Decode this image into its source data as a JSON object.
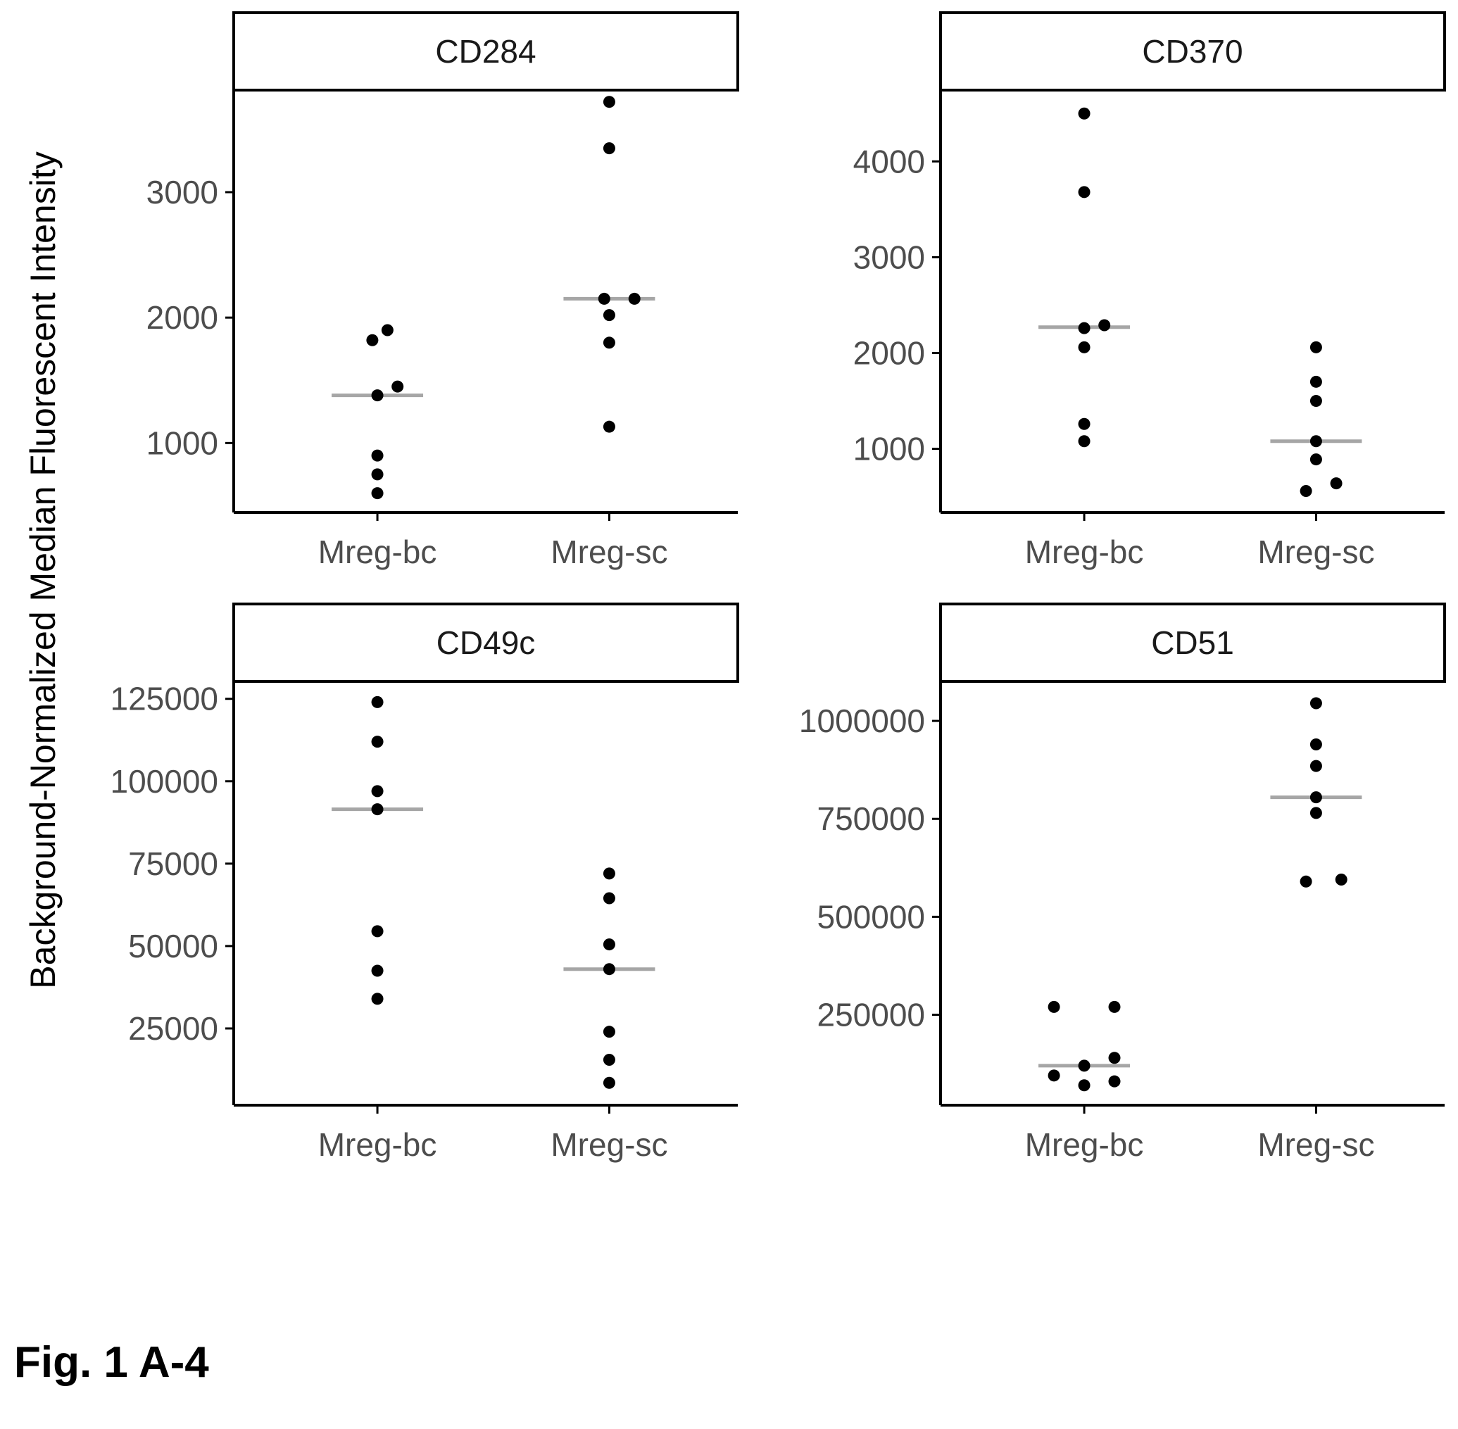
{
  "figure_caption": "Fig. 1 A-4",
  "ylabel": "Background-Normalized Median Fluorescent Intensity",
  "colors": {
    "point": "#000000",
    "median": "#a6a6a6",
    "axis": "#000000"
  },
  "chart_data": [
    {
      "type": "scatter",
      "panel": "CD284",
      "categories": [
        "Mreg-bc",
        "Mreg-sc"
      ],
      "ylim": [
        480,
        3780
      ],
      "yticks": [
        1000,
        2000,
        3000
      ],
      "ytick_labels": [
        "1000",
        "2000",
        "3000"
      ],
      "series": [
        {
          "category": "Mreg-bc",
          "values": [
            600,
            750,
            900,
            1380,
            1450,
            1820,
            1900
          ],
          "jitter": [
            0,
            0,
            0,
            0,
            0.04,
            -0.01,
            0.02
          ],
          "median": 1380
        },
        {
          "category": "Mreg-sc",
          "values": [
            1130,
            1800,
            2020,
            2150,
            2150,
            3350,
            3720
          ],
          "jitter": [
            0,
            0,
            0,
            -0.01,
            0.05,
            0,
            0
          ],
          "median": 2150
        }
      ],
      "grid": false
    },
    {
      "type": "scatter",
      "panel": "CD370",
      "categories": [
        "Mreg-bc",
        "Mreg-sc"
      ],
      "ylim": [
        380,
        4700
      ],
      "yticks": [
        1000,
        2000,
        3000,
        4000
      ],
      "ytick_labels": [
        "1000",
        "2000",
        "3000",
        "4000"
      ],
      "series": [
        {
          "category": "Mreg-bc",
          "values": [
            1080,
            1260,
            2060,
            2260,
            2290,
            3680,
            4500
          ],
          "jitter": [
            0,
            0,
            0,
            0,
            0.04,
            0,
            0
          ],
          "median": 2270
        },
        {
          "category": "Mreg-sc",
          "values": [
            560,
            640,
            890,
            1080,
            1500,
            1700,
            2060
          ],
          "jitter": [
            -0.02,
            0.04,
            0,
            0,
            0,
            0,
            0
          ],
          "median": 1080
        }
      ],
      "grid": false
    },
    {
      "type": "scatter",
      "panel": "CD49c",
      "categories": [
        "Mreg-bc",
        "Mreg-sc"
      ],
      "ylim": [
        3000,
        129000
      ],
      "yticks": [
        25000,
        50000,
        75000,
        100000,
        125000
      ],
      "ytick_labels": [
        "25000",
        "50000",
        "75000",
        "100000",
        "125000"
      ],
      "series": [
        {
          "category": "Mreg-bc",
          "values": [
            34000,
            42500,
            54500,
            91500,
            97000,
            112000,
            124000
          ],
          "jitter": [
            0,
            0,
            0,
            0,
            0,
            0,
            0
          ],
          "median": 91500
        },
        {
          "category": "Mreg-sc",
          "values": [
            8500,
            15500,
            24000,
            43000,
            50500,
            64500,
            72000
          ],
          "jitter": [
            0,
            0,
            0,
            0,
            0,
            0,
            0
          ],
          "median": 43000
        }
      ],
      "grid": false
    },
    {
      "type": "scatter",
      "panel": "CD51",
      "categories": [
        "Mreg-bc",
        "Mreg-sc"
      ],
      "ylim": [
        30000,
        1090000
      ],
      "yticks": [
        250000,
        500000,
        750000,
        1000000
      ],
      "ytick_labels": [
        "250000",
        "500000",
        "750000",
        "1000000"
      ],
      "series": [
        {
          "category": "Mreg-bc",
          "values": [
            80000,
            70000,
            95000,
            120000,
            140000,
            270000,
            270000
          ],
          "jitter": [
            0.06,
            0,
            -0.06,
            0,
            0.06,
            -0.06,
            0.06
          ],
          "median": 120000
        },
        {
          "category": "Mreg-sc",
          "values": [
            590000,
            595000,
            765000,
            805000,
            885000,
            940000,
            1045000
          ],
          "jitter": [
            -0.02,
            0.05,
            0,
            0,
            0,
            0,
            0
          ],
          "median": 805000
        }
      ],
      "grid": false
    }
  ]
}
